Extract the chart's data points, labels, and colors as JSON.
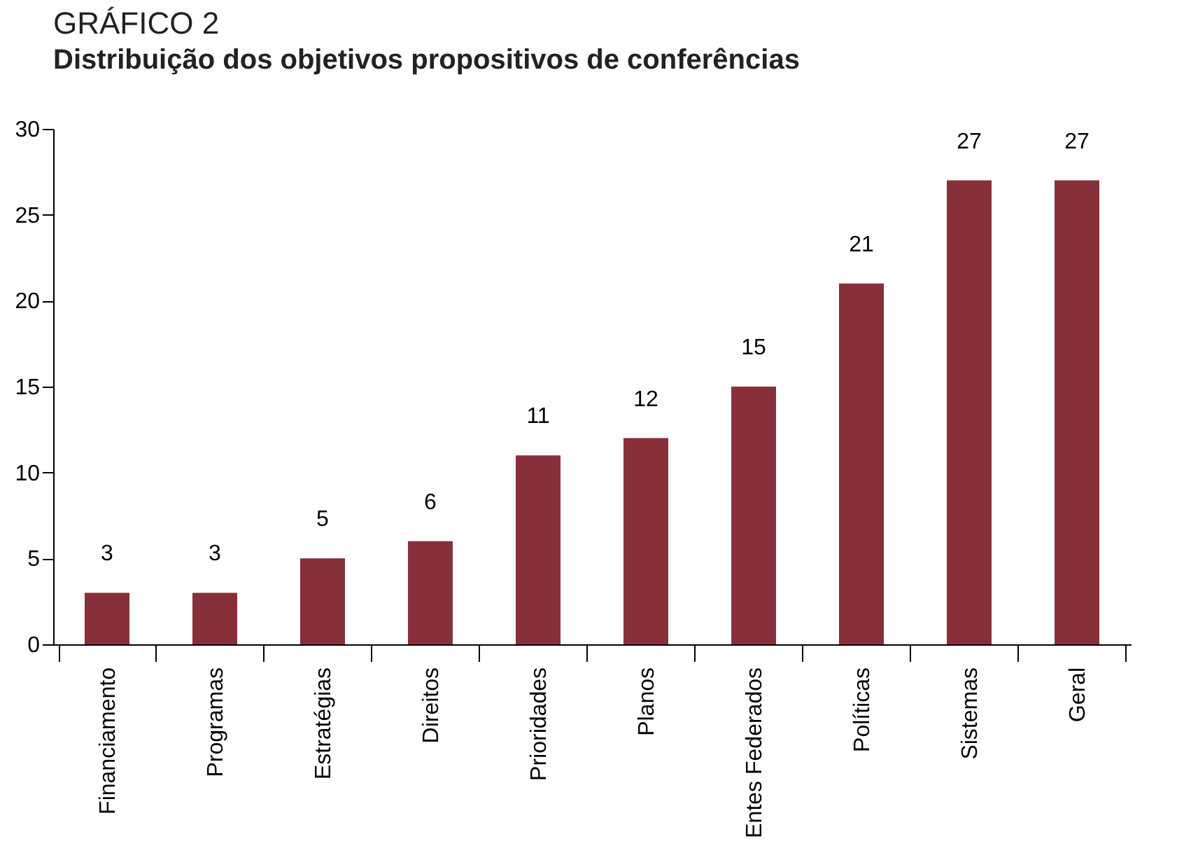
{
  "chart_data": {
    "type": "bar",
    "title": "GRÁFICO 2",
    "subtitle": "Distribuição dos objetivos propositivos de conferências",
    "categories": [
      "Financiamento",
      "Programas",
      "Estratégias",
      "Direitos",
      "Prioridades",
      "Planos",
      "Entes Federados",
      "Políticas",
      "Sistemas",
      "Geral"
    ],
    "values": [
      3,
      3,
      5,
      6,
      11,
      12,
      15,
      21,
      27,
      27
    ],
    "color": "#88303a",
    "ylim": [
      0,
      30
    ],
    "yticks": [
      0,
      5,
      10,
      15,
      20,
      25,
      30
    ],
    "grid": false,
    "data_labels": true
  }
}
